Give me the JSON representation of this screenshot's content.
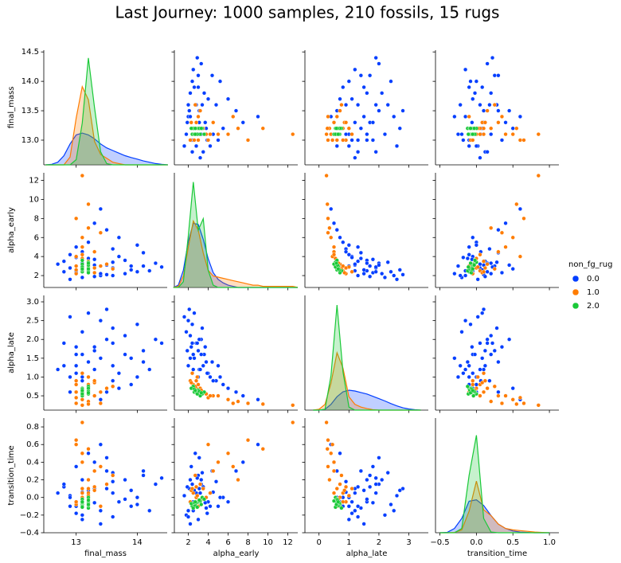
{
  "chart_data": {
    "type": "pairplot",
    "title": "Last Journey: 1000 samples, 210 fossils, 15 rugs",
    "variables": [
      "final_mass",
      "alpha_early",
      "alpha_late",
      "transition_time"
    ],
    "xlims": [
      [
        12.47,
        14.49
      ],
      [
        0.6,
        13.0
      ],
      [
        -0.47,
        3.65
      ],
      [
        -0.56,
        1.13
      ]
    ],
    "ylims": [
      [
        12.58,
        14.53
      ],
      [
        0.75,
        12.8
      ],
      [
        0.12,
        3.17
      ],
      [
        -0.4,
        0.9
      ]
    ],
    "xticks": [
      [
        13,
        14
      ],
      [
        2,
        4,
        6,
        8,
        10,
        12
      ],
      [
        0,
        1,
        2,
        3
      ],
      [
        {
          "value": -0.5,
          "label": "−0.5"
        },
        {
          "value": 0,
          "label": "0.0"
        },
        0.5,
        {
          "value": 1,
          "label": "1.0"
        }
      ]
    ],
    "yticks": [
      [
        {
          "value": 13,
          "label": "13.0"
        },
        13.5,
        {
          "value": 14,
          "label": "14.0"
        },
        14.5
      ],
      [
        2,
        4,
        6,
        8,
        10,
        12
      ],
      [
        0.5,
        {
          "value": 1,
          "label": "1.0"
        },
        1.5,
        {
          "value": 2,
          "label": "2.0"
        },
        2.5,
        {
          "value": 3,
          "label": "3.0"
        }
      ],
      [
        {
          "value": -0.4,
          "label": "−0.4"
        },
        {
          "value": -0.2,
          "label": "−0.2"
        },
        {
          "value": 0,
          "label": "0.0"
        },
        0.2,
        0.4,
        0.6,
        0.8
      ]
    ],
    "kde_x": [
      [
        12.5,
        12.6,
        12.7,
        12.8,
        12.9,
        13.0,
        13.1,
        13.2,
        13.3,
        13.4,
        13.5,
        13.6,
        13.7,
        13.8,
        13.9,
        14.0,
        14.1,
        14.2,
        14.3,
        14.4,
        14.5
      ],
      [
        0.5,
        1,
        1.5,
        2,
        2.5,
        3,
        3.5,
        4,
        4.5,
        5,
        5.5,
        6,
        6.5,
        7,
        7.5,
        8,
        8.5,
        9,
        9.5,
        10,
        10.5,
        11,
        11.5,
        12,
        12.5,
        13
      ],
      [
        -0.2,
        0,
        0.2,
        0.4,
        0.6,
        0.8,
        1.0,
        1.2,
        1.4,
        1.6,
        1.8,
        2.0,
        2.2,
        2.4,
        2.6,
        2.8,
        3.0,
        3.2,
        3.4
      ],
      [
        -0.5,
        -0.4,
        -0.3,
        -0.2,
        -0.1,
        0,
        0.1,
        0.2,
        0.3,
        0.4,
        0.5,
        0.6,
        0.7,
        0.8,
        0.9,
        1.0
      ]
    ],
    "density_lims": [
      [
        0,
        4.4
      ],
      [
        0,
        1.0
      ],
      [
        0,
        3.0
      ],
      [
        0,
        8
      ]
    ],
    "legend": {
      "title": "non_fg_rug",
      "position": "right"
    },
    "series": [
      {
        "name": "0.0",
        "color": "#023eff",
        "values": [
          [
            13.0,
            13.3,
            13.6,
            12.9,
            13.8,
            13.2,
            14.1,
            13.4,
            12.8,
            13.5,
            13.1,
            14.3,
            13.7,
            13.0,
            13.9,
            13.2,
            12.9,
            13.6,
            14.0,
            13.3,
            13.1,
            13.5,
            12.7,
            13.8,
            14.4,
            13.2,
            13.0,
            13.4,
            13.6,
            13.1,
            14.2,
            13.3,
            12.9,
            13.7,
            13.5,
            13.0,
            14.1,
            13.2,
            13.9,
            13.4,
            12.8,
            13.6,
            13.1,
            14.0,
            13.3
          ],
          [
            2.5,
            3.1,
            2.8,
            4.2,
            2.2,
            5.5,
            3.0,
            2.0,
            3.5,
            6.8,
            1.8,
            3.3,
            4.0,
            2.3,
            2.6,
            3.8,
            1.6,
            4.8,
            2.4,
            7.5,
            3.0,
            2.1,
            3.2,
            3.6,
            2.9,
            2.7,
            5.0,
            2.2,
            3.4,
            4.5,
            2.5,
            1.9,
            2.8,
            6.0,
            3.1,
            3.9,
            4.4,
            2.6,
            3.0,
            9.0,
            2.4,
            2.0,
            3.3,
            5.2,
            3.7
          ],
          [
            1.6,
            1.2,
            1.9,
            1.0,
            2.1,
            0.8,
            1.7,
            2.5,
            1.3,
            0.6,
            2.2,
            2.0,
            1.1,
            1.8,
            1.5,
            1.4,
            2.6,
            0.9,
            2.4,
            0.5,
            1.0,
            2.8,
            1.2,
            1.6,
            1.9,
            0.7,
            1.3,
            1.5,
            2.3,
            0.9,
            1.2,
            1.7,
            0.6,
            0.7,
            2.0,
            1.1,
            1.4,
            2.7,
            0.8,
            0.4,
            1.9,
            1.3,
            1.6,
            1.0,
            1.8
          ],
          [
            -0.05,
            0.1,
            0.05,
            -0.1,
            0.2,
            0.0,
            0.25,
            -0.15,
            0.12,
            0.3,
            -0.2,
            0.15,
            -0.05,
            0.35,
            0.08,
            -0.12,
            0.02,
            0.18,
            -0.08,
            0.4,
            -0.25,
            0.1,
            0.05,
            -0.02,
            0.22,
            0.5,
            -0.1,
            -0.3,
            0.28,
            0.06,
            -0.15,
            0.12,
            0.0,
            -0.05,
            0.45,
            -0.18,
            0.3,
            0.08,
            -0.1,
            0.6,
            0.15,
            -0.22,
            0.2,
            0.0,
            -0.06
          ]
        ],
        "density": [
          [
            0,
            0.02,
            0.1,
            0.35,
            0.8,
            1.15,
            1.22,
            1.15,
            1.0,
            0.8,
            0.65,
            0.55,
            0.45,
            0.35,
            0.28,
            0.22,
            0.15,
            0.1,
            0.05,
            0.02,
            0
          ],
          [
            0,
            0.02,
            0.15,
            0.4,
            0.56,
            0.55,
            0.42,
            0.25,
            0.13,
            0.07,
            0.04,
            0.02,
            0.01,
            0,
            0,
            0,
            0,
            0,
            0,
            0,
            0,
            0,
            0,
            0,
            0,
            0
          ],
          [
            0,
            0,
            0.02,
            0.15,
            0.35,
            0.48,
            0.52,
            0.5,
            0.46,
            0.42,
            0.36,
            0.3,
            0.24,
            0.17,
            0.11,
            0.06,
            0.03,
            0.01,
            0
          ],
          [
            0,
            0.03,
            0.3,
            1.0,
            2.2,
            2.3,
            1.9,
            1.2,
            0.6,
            0.3,
            0.12,
            0.05,
            0.02,
            0,
            0,
            0
          ]
        ]
      },
      {
        "name": "1.0",
        "color": "#ff7c00",
        "values": [
          [
            13.1,
            13.2,
            13.0,
            13.3,
            13.1,
            13.2,
            13.4,
            13.0,
            13.1,
            13.2,
            13.5,
            13.1,
            13.0,
            13.3,
            13.2,
            13.1,
            13.6,
            13.0,
            13.2,
            13.1,
            13.4,
            13.2,
            13.0,
            13.3,
            13.1
          ],
          [
            2.8,
            3.5,
            2.2,
            4.5,
            6.0,
            2.5,
            3.0,
            8.0,
            12.5,
            2.9,
            3.2,
            5.0,
            2.6,
            2.3,
            7.0,
            3.8,
            2.7,
            4.0,
            3.3,
            2.4,
            6.5,
            9.5,
            3.0,
            2.8,
            4.2
          ],
          [
            0.7,
            0.6,
            0.9,
            0.5,
            0.4,
            0.8,
            0.6,
            0.3,
            0.25,
            1.0,
            0.7,
            0.5,
            0.6,
            0.85,
            0.35,
            0.55,
            0.75,
            0.45,
            0.65,
            1.1,
            0.3,
            0.28,
            0.8,
            0.9,
            0.5
          ],
          [
            0.0,
            0.1,
            -0.05,
            0.3,
            0.5,
            0.05,
            -0.1,
            0.65,
            0.85,
            0.02,
            0.15,
            0.4,
            -0.08,
            0.08,
            0.2,
            0.0,
            0.25,
            0.6,
            -0.02,
            0.1,
            0.35,
            0.55,
            -0.05,
            0.12,
            0.05
          ]
        ],
        "density": [
          [
            0,
            0,
            0,
            0,
            0.3,
            1.8,
            3.0,
            2.5,
            0.9,
            0.4,
            0.25,
            0.1,
            0.05,
            0,
            0,
            0,
            0,
            0,
            0,
            0,
            0
          ],
          [
            0,
            0.01,
            0.1,
            0.35,
            0.58,
            0.5,
            0.3,
            0.15,
            0.1,
            0.09,
            0.08,
            0.07,
            0.06,
            0.05,
            0.04,
            0.03,
            0.02,
            0.02,
            0.01,
            0.01,
            0.01,
            0.01,
            0.01,
            0.01,
            0.01,
            0
          ],
          [
            0,
            0.02,
            0.15,
            0.7,
            1.5,
            1.1,
            0.35,
            0.15,
            0.08,
            0.04,
            0.01,
            0,
            0,
            0,
            0,
            0,
            0,
            0,
            0
          ],
          [
            0,
            0,
            0.02,
            0.2,
            1.5,
            3.6,
            1.6,
            1.2,
            0.6,
            0.3,
            0.2,
            0.15,
            0.1,
            0.05,
            0.02,
            0
          ]
        ]
      },
      {
        "name": "2.0",
        "color": "#1ac938",
        "values": [
          [
            13.1,
            13.2,
            13.1,
            13.2,
            13.1,
            13.2,
            13.1,
            13.2,
            13.1,
            13.2,
            13.1,
            13.2,
            13.1,
            13.2,
            13.1
          ],
          [
            2.6,
            3.0,
            2.4,
            3.4,
            2.8,
            2.5,
            3.2,
            2.7,
            3.6,
            2.3,
            2.9,
            3.1,
            2.6,
            3.3,
            2.7
          ],
          [
            0.6,
            0.65,
            0.7,
            0.55,
            0.6,
            0.75,
            0.5,
            0.65,
            0.6,
            0.7,
            0.55,
            0.62,
            0.68,
            0.58,
            0.64
          ],
          [
            -0.08,
            -0.05,
            -0.1,
            0.0,
            -0.06,
            -0.12,
            -0.04,
            -0.09,
            -0.02,
            -0.07,
            -0.11,
            -0.03,
            -0.06,
            -0.08,
            -0.05
          ]
        ],
        "density": [
          [
            0,
            0,
            0,
            0,
            0,
            0.2,
            1.6,
            4.1,
            2.2,
            0.5,
            0.05,
            0,
            0,
            0,
            0,
            0,
            0,
            0,
            0,
            0,
            0
          ],
          [
            0,
            0,
            0.05,
            0.45,
            0.92,
            0.5,
            0.6,
            0.15,
            0.02,
            0,
            0,
            0,
            0,
            0,
            0,
            0,
            0,
            0,
            0,
            0,
            0,
            0,
            0,
            0,
            0,
            0
          ],
          [
            0,
            0,
            0.02,
            0.9,
            2.75,
            1.0,
            0.08,
            0,
            0,
            0,
            0,
            0,
            0,
            0,
            0,
            0,
            0,
            0,
            0
          ],
          [
            0,
            0,
            0,
            0.3,
            4.0,
            6.8,
            1.0,
            0.05,
            0,
            0,
            0,
            0,
            0,
            0,
            0,
            0
          ]
        ]
      }
    ]
  }
}
